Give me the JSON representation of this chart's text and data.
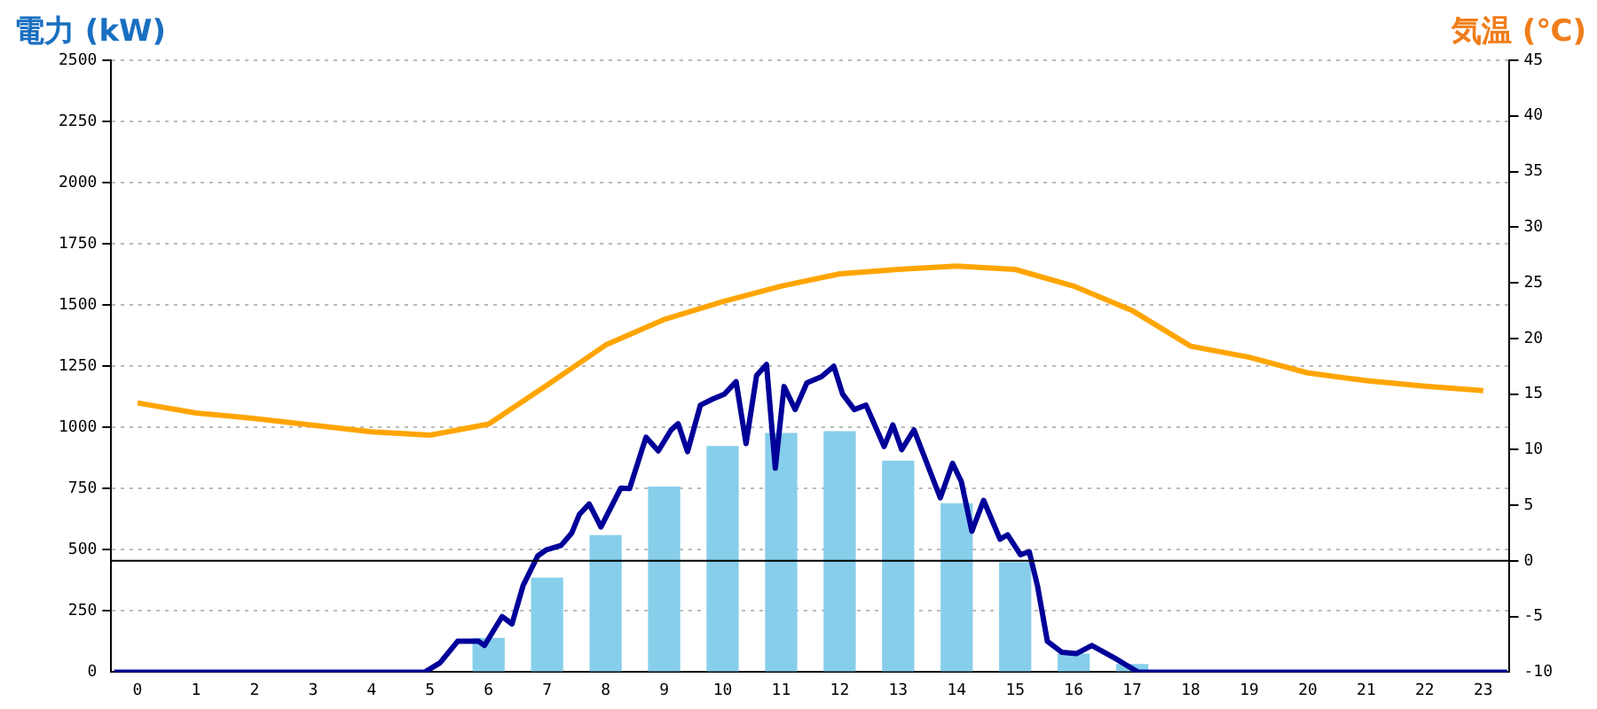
{
  "chart_data": {
    "type": "bar",
    "ylabel": "電力 (kW)",
    "y2label": "気温 (℃)",
    "x": [
      0,
      1,
      2,
      3,
      4,
      5,
      6,
      7,
      8,
      9,
      10,
      11,
      12,
      13,
      14,
      15,
      16,
      17,
      18,
      19,
      20,
      21,
      22,
      23
    ],
    "xlim": [
      -0.45,
      23.45
    ],
    "xticks": [
      0,
      1,
      2,
      3,
      4,
      5,
      6,
      7,
      8,
      9,
      10,
      11,
      12,
      13,
      14,
      15,
      16,
      17,
      18,
      19,
      20,
      21,
      22,
      23
    ],
    "ylim": [
      0,
      2500
    ],
    "yticks": [
      0,
      250,
      500,
      750,
      1000,
      1250,
      1500,
      1750,
      2000,
      2250,
      2500
    ],
    "y2lim": [
      -10,
      45
    ],
    "y2ticks": [
      -10,
      -5,
      0,
      5,
      10,
      15,
      20,
      25,
      30,
      35,
      40,
      45
    ],
    "series": [
      {
        "type": "bar",
        "color": "#87ceeb",
        "values": [
          0,
          0,
          0,
          0,
          0,
          0,
          140,
          386,
          560,
          758,
          924,
          977,
          985,
          864,
          690,
          450,
          76,
          33,
          0,
          0,
          0,
          0,
          0,
          0
        ]
      },
      {
        "type": "line",
        "color": "#000099",
        "x": [
          -0.4,
          4.91,
          5.17,
          5.47,
          5.83,
          5.93,
          6.23,
          6.4,
          6.59,
          6.84,
          6.99,
          7.24,
          7.42,
          7.55,
          7.72,
          7.92,
          8.26,
          8.41,
          8.69,
          8.9,
          9.12,
          9.24,
          9.4,
          9.62,
          9.83,
          10.03,
          10.23,
          10.4,
          10.58,
          10.75,
          10.9,
          11.05,
          11.24,
          11.44,
          11.69,
          11.9,
          12.05,
          12.25,
          12.45,
          12.76,
          12.91,
          13.06,
          13.27,
          13.72,
          13.93,
          14.08,
          14.26,
          14.46,
          14.74,
          14.87,
          15.09,
          15.24,
          15.38,
          15.55,
          15.8,
          16.05,
          16.31,
          16.71,
          17.1,
          23.41
        ],
        "values": [
          0,
          0,
          38,
          126,
          126,
          109,
          227,
          197,
          354,
          475,
          500,
          518,
          568,
          644,
          687,
          593,
          752,
          750,
          960,
          904,
          990,
          1015,
          901,
          1091,
          1116,
          1136,
          1187,
          934,
          1212,
          1257,
          833,
          1167,
          1073,
          1182,
          1207,
          1250,
          1136,
          1073,
          1091,
          922,
          1010,
          909,
          990,
          712,
          853,
          778,
          576,
          702,
          543,
          561,
          480,
          492,
          354,
          126,
          81,
          76,
          109,
          56,
          0,
          0
        ]
      },
      {
        "type": "line",
        "axis": "y2",
        "color": "#ffa500",
        "values": [
          14.2,
          13.3,
          12.8,
          12.2,
          11.6,
          11.3,
          12.3,
          15.8,
          19.4,
          21.7,
          23.3,
          24.7,
          25.8,
          26.2,
          26.5,
          26.2,
          24.7,
          22.5,
          19.3,
          18.3,
          16.9,
          16.2,
          15.7,
          15.3
        ]
      }
    ],
    "ref_lines": [
      {
        "axis": "y2",
        "value": 0,
        "color": "#000000"
      }
    ],
    "grid": "y",
    "legend": false,
    "marker": "none",
    "line_style": "solid"
  }
}
